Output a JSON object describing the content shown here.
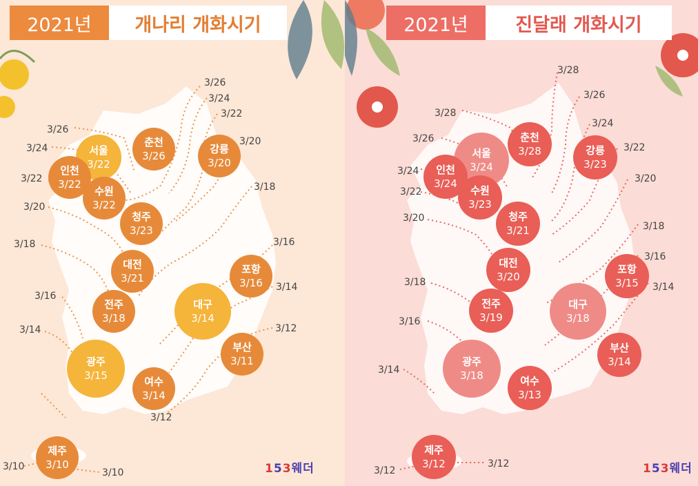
{
  "forsythia": {
    "year": "2021년",
    "title": "개나리 개화시기",
    "colors": {
      "main": "#e68a3a",
      "peak": "#f5b43a"
    },
    "cities": [
      {
        "name": "서울",
        "date": "3/22"
      },
      {
        "name": "춘천",
        "date": "3/26"
      },
      {
        "name": "강릉",
        "date": "3/20"
      },
      {
        "name": "인천",
        "date": "3/22"
      },
      {
        "name": "수원",
        "date": "3/22"
      },
      {
        "name": "청주",
        "date": "3/23"
      },
      {
        "name": "대전",
        "date": "3/21"
      },
      {
        "name": "포항",
        "date": "3/16"
      },
      {
        "name": "전주",
        "date": "3/18"
      },
      {
        "name": "대구",
        "date": "3/14"
      },
      {
        "name": "부산",
        "date": "3/11"
      },
      {
        "name": "광주",
        "date": "3/15"
      },
      {
        "name": "여수",
        "date": "3/14"
      },
      {
        "name": "제주",
        "date": "3/10"
      }
    ],
    "isolines": [
      "3/26",
      "3/24",
      "3/22",
      "3/20",
      "3/18",
      "3/26",
      "3/24",
      "3/22",
      "3/20",
      "3/18",
      "3/16",
      "3/16",
      "3/14",
      "3/14",
      "3/12",
      "3/12",
      "3/10",
      "3/10"
    ]
  },
  "azalea": {
    "year": "2021년",
    "title": "진달래 개화시기",
    "colors": {
      "main": "#e95e56",
      "peak": "#ef8b86"
    },
    "cities": [
      {
        "name": "서울",
        "date": "3/24"
      },
      {
        "name": "춘천",
        "date": "3/28"
      },
      {
        "name": "강릉",
        "date": "3/23"
      },
      {
        "name": "인천",
        "date": "3/24"
      },
      {
        "name": "수원",
        "date": "3/23"
      },
      {
        "name": "청주",
        "date": "3/21"
      },
      {
        "name": "대전",
        "date": "3/20"
      },
      {
        "name": "포항",
        "date": "3/15"
      },
      {
        "name": "전주",
        "date": "3/19"
      },
      {
        "name": "대구",
        "date": "3/18"
      },
      {
        "name": "부산",
        "date": "3/14"
      },
      {
        "name": "광주",
        "date": "3/18"
      },
      {
        "name": "여수",
        "date": "3/13"
      },
      {
        "name": "제주",
        "date": "3/12"
      }
    ],
    "isolines": [
      "3/28",
      "3/26",
      "3/24",
      "3/22",
      "3/20",
      "3/28",
      "3/26",
      "3/24",
      "3/22",
      "3/20",
      "3/18",
      "3/16",
      "3/14",
      "3/18",
      "3/16",
      "3/14",
      "3/12",
      "3/12"
    ]
  },
  "logo": {
    "part1": "1",
    "part2": "5",
    "part3": "3",
    "part4": "웨더"
  }
}
